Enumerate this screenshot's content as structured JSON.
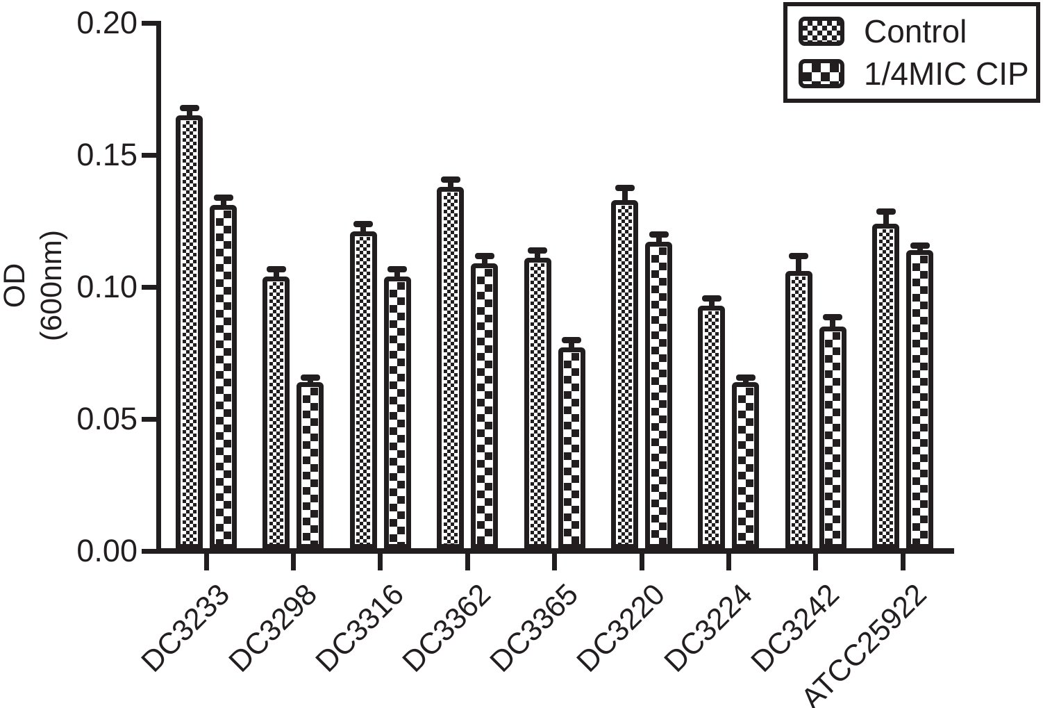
{
  "chart_data": {
    "type": "bar",
    "title": "",
    "ylabel_line1": "OD",
    "ylabel_line2": "(600nm)",
    "xlabel": "",
    "ylim": [
      0,
      0.2
    ],
    "y_ticks": [
      "0.20",
      "0.15",
      "0.10",
      "0.05",
      "0.00"
    ],
    "grid": false,
    "legend_position": "top-right",
    "background_color": "#ffffff",
    "ink_color": "#221e1f",
    "categories": [
      "DC3233",
      "DC3298",
      "DC3316",
      "DC3362",
      "DC3365",
      "DC3220",
      "DC3224",
      "DC3242",
      "ATCC25922"
    ],
    "series": [
      {
        "name": "Control",
        "pattern": "fine-checker",
        "values": [
          0.165,
          0.104,
          0.121,
          0.138,
          0.111,
          0.133,
          0.093,
          0.106,
          0.124
        ],
        "errors_upper": [
          0.002,
          0.002,
          0.002,
          0.002,
          0.002,
          0.004,
          0.002,
          0.005,
          0.004
        ]
      },
      {
        "name": "1/4MIC CIP",
        "pattern": "coarse-checker",
        "values": [
          0.131,
          0.064,
          0.104,
          0.109,
          0.077,
          0.117,
          0.064,
          0.085,
          0.114
        ],
        "errors_upper": [
          0.002,
          0.001,
          0.002,
          0.002,
          0.002,
          0.002,
          0.001,
          0.003,
          0.001
        ]
      }
    ]
  }
}
